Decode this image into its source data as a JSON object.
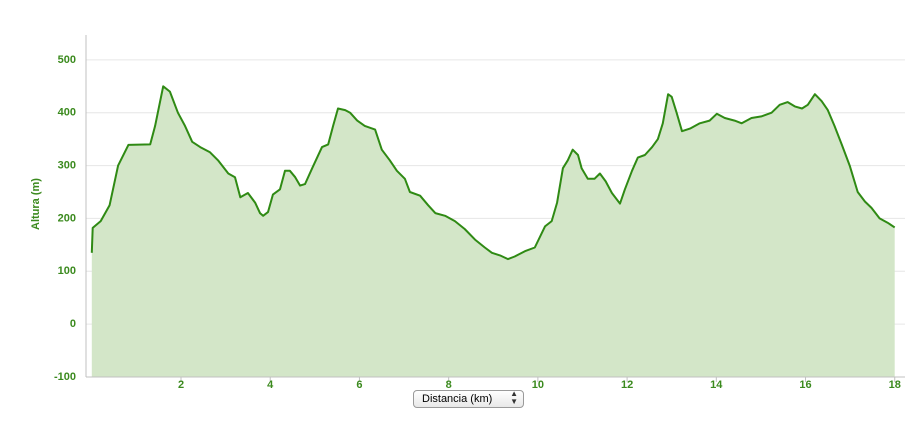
{
  "chart_data": {
    "type": "area",
    "y_label": "Altura (m)",
    "x_label": "Distancia (km)",
    "x": [
      0,
      0.02,
      0.2,
      0.4,
      0.59,
      0.82,
      1.31,
      1.42,
      1.6,
      1.75,
      1.93,
      2.09,
      2.25,
      2.43,
      2.65,
      2.83,
      3.06,
      3.21,
      3.33,
      3.5,
      3.66,
      3.77,
      3.84,
      3.95,
      4.06,
      4.22,
      4.33,
      4.44,
      4.56,
      4.67,
      4.78,
      4.94,
      5.16,
      5.3,
      5.41,
      5.52,
      5.68,
      5.79,
      5.95,
      6.12,
      6.35,
      6.5,
      6.68,
      6.84,
      7.02,
      7.13,
      7.36,
      7.54,
      7.7,
      7.92,
      8.14,
      8.36,
      8.59,
      8.81,
      8.97,
      9.15,
      9.33,
      9.48,
      9.71,
      9.93,
      10.16,
      10.31,
      10.43,
      10.56,
      10.67,
      10.78,
      10.9,
      10.98,
      11.12,
      11.27,
      11.39,
      11.52,
      11.66,
      11.84,
      11.95,
      12.11,
      12.24,
      12.4,
      12.56,
      12.69,
      12.8,
      12.92,
      13.0,
      13.11,
      13.23,
      13.41,
      13.63,
      13.85,
      14.01,
      14.19,
      14.41,
      14.57,
      14.79,
      15.01,
      15.24,
      15.42,
      15.6,
      15.76,
      15.92,
      16.05,
      16.21,
      16.36,
      16.5,
      16.65,
      16.81,
      16.99,
      17.17,
      17.33,
      17.48,
      17.66,
      17.84,
      18.0
    ],
    "values": [
      135,
      182,
      195,
      225,
      300,
      339,
      340,
      375,
      450,
      440,
      400,
      375,
      345,
      335,
      325,
      310,
      285,
      278,
      240,
      248,
      230,
      210,
      205,
      212,
      245,
      255,
      290,
      290,
      278,
      262,
      265,
      295,
      335,
      340,
      375,
      408,
      405,
      400,
      385,
      375,
      368,
      330,
      310,
      290,
      275,
      250,
      243,
      225,
      210,
      205,
      195,
      180,
      160,
      145,
      135,
      130,
      123,
      128,
      138,
      145,
      185,
      195,
      230,
      295,
      310,
      330,
      320,
      295,
      275,
      275,
      285,
      270,
      248,
      228,
      255,
      290,
      315,
      320,
      335,
      350,
      380,
      435,
      430,
      400,
      365,
      370,
      380,
      385,
      398,
      390,
      385,
      380,
      390,
      393,
      400,
      415,
      420,
      412,
      408,
      415,
      435,
      422,
      405,
      375,
      340,
      300,
      250,
      232,
      220,
      200,
      192,
      183
    ],
    "line_color": "#2f8a14",
    "fill_color": "#d3e6c8",
    "xlim": [
      -0.13,
      18.23
    ],
    "ylim": [
      -100,
      547
    ],
    "xticks": [
      2,
      4,
      6,
      8,
      10,
      12,
      14,
      16,
      18
    ],
    "yticks": [
      -100,
      0,
      100,
      200,
      300,
      400,
      500
    ],
    "grid": true
  }
}
